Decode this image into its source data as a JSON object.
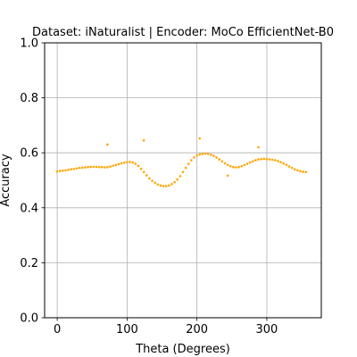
{
  "chart_data": {
    "type": "scatter",
    "title": "Dataset: iNaturalist | Encoder: MoCo EfficientNet-B0",
    "xlabel": "Theta (Degrees)",
    "ylabel": "Accuracy",
    "xlim": [
      -18,
      378
    ],
    "ylim": [
      0.0,
      1.0
    ],
    "xticks": [
      0,
      100,
      200,
      300
    ],
    "yticks": [
      0.0,
      0.2,
      0.4,
      0.6,
      0.8,
      1.0
    ],
    "xtick_labels": [
      "0",
      "100",
      "200",
      "300"
    ],
    "ytick_labels": [
      "0.0",
      "0.2",
      "0.4",
      "0.6",
      "0.8",
      "1.0"
    ],
    "grid": true,
    "marker_color": "#ffa500",
    "series": [
      {
        "x": [
          0,
          4,
          8,
          12,
          16,
          20,
          24,
          28,
          32,
          36,
          40,
          44,
          48,
          52,
          56,
          60,
          64,
          68,
          72,
          76,
          80,
          84,
          88,
          92,
          96,
          100,
          104,
          108,
          112,
          116,
          120,
          124,
          128,
          132,
          136,
          140,
          144,
          148,
          152,
          156,
          160,
          164,
          168,
          172,
          176,
          180,
          184,
          188,
          192,
          196,
          200,
          204,
          208,
          212,
          216,
          220,
          224,
          228,
          232,
          236,
          240,
          244,
          248,
          252,
          256,
          260,
          264,
          268,
          272,
          276,
          280,
          284,
          288,
          292,
          296,
          300,
          304,
          308,
          312,
          316,
          320,
          324,
          328,
          332,
          336,
          340,
          344,
          348,
          352,
          356,
          72,
          124,
          204,
          244,
          288
        ],
        "y": [
          0.532,
          0.534,
          0.535,
          0.536,
          0.538,
          0.54,
          0.541,
          0.543,
          0.545,
          0.546,
          0.547,
          0.548,
          0.549,
          0.549,
          0.549,
          0.548,
          0.548,
          0.547,
          0.548,
          0.55,
          0.553,
          0.556,
          0.559,
          0.562,
          0.564,
          0.566,
          0.567,
          0.565,
          0.56,
          0.552,
          0.542,
          0.53,
          0.518,
          0.507,
          0.498,
          0.491,
          0.485,
          0.481,
          0.479,
          0.479,
          0.481,
          0.486,
          0.493,
          0.503,
          0.515,
          0.53,
          0.545,
          0.56,
          0.573,
          0.583,
          0.59,
          0.594,
          0.596,
          0.597,
          0.596,
          0.593,
          0.589,
          0.583,
          0.576,
          0.569,
          0.562,
          0.556,
          0.551,
          0.548,
          0.547,
          0.548,
          0.551,
          0.555,
          0.56,
          0.565,
          0.569,
          0.573,
          0.576,
          0.577,
          0.578,
          0.577,
          0.576,
          0.575,
          0.573,
          0.57,
          0.566,
          0.561,
          0.556,
          0.55,
          0.545,
          0.54,
          0.536,
          0.533,
          0.531,
          0.53,
          0.63,
          0.645,
          0.652,
          0.517,
          0.62
        ]
      }
    ]
  }
}
